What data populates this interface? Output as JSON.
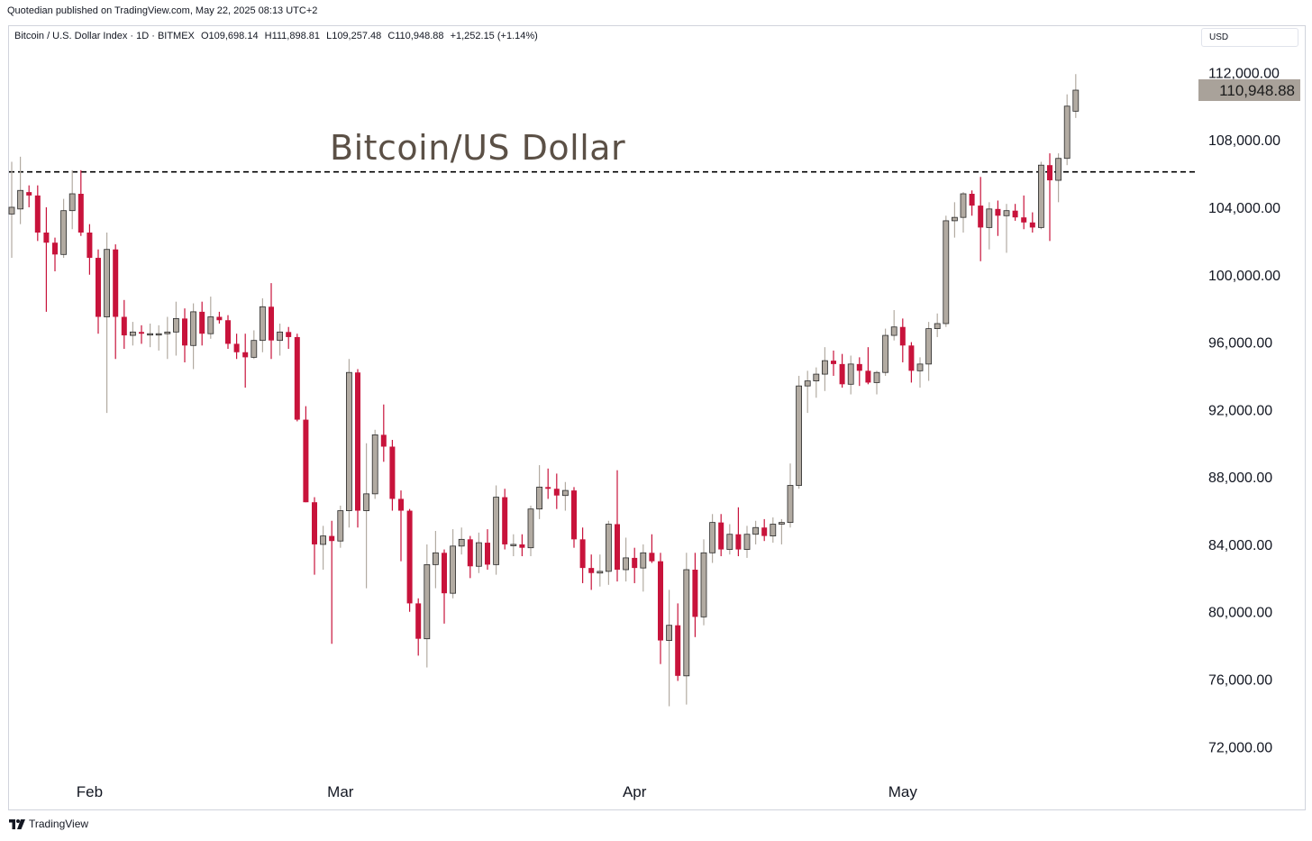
{
  "publisher_line": "Quotedian published on TradingView.com, May 22, 2025 08:13 UTC+2",
  "header": {
    "symbol": "Bitcoin / U.S. Dollar Index · 1D · BITMEX",
    "open": "O109,698.14",
    "high": "H111,898.81",
    "low": "L109,257.48",
    "close": "C110,948.88",
    "change": "+1,252.15 (+1.14%)"
  },
  "currency_button": "USD",
  "annotation_text": "Bitcoin/US Dollar",
  "footer_brand": "TradingView",
  "colors": {
    "up": "#b2aba2",
    "down": "#c8133b",
    "last_price_bg": "#a9a29a",
    "dashed_line": "#000000"
  },
  "chart_data": {
    "type": "candlestick",
    "title": "Bitcoin/US Dollar",
    "x_axis": {
      "tick_labels": [
        "Feb",
        "Mar",
        "Apr",
        "May"
      ]
    },
    "y_axis": {
      "tick_labels": [
        "112,000.00",
        "108,000.00",
        "104,000.00",
        "100,000.00",
        "96,000.00",
        "92,000.00",
        "88,000.00",
        "84,000.00",
        "80,000.00",
        "76,000.00",
        "72,000.00"
      ],
      "range": [
        70200,
        114800
      ]
    },
    "last_price_label": "110,948.88",
    "horizontal_line": {
      "value": 106100,
      "style": "dashed"
    },
    "candles": [
      {
        "o": 103600,
        "h": 106700,
        "l": 101000,
        "c": 104000
      },
      {
        "o": 103900,
        "h": 107000,
        "l": 103000,
        "c": 105000
      },
      {
        "o": 104900,
        "h": 105300,
        "l": 104000,
        "c": 104700
      },
      {
        "o": 104700,
        "h": 105300,
        "l": 102000,
        "c": 102500
      },
      {
        "o": 102500,
        "h": 104000,
        "l": 97800,
        "c": 101900
      },
      {
        "o": 101900,
        "h": 102200,
        "l": 100200,
        "c": 101200
      },
      {
        "o": 101200,
        "h": 104500,
        "l": 101000,
        "c": 103800
      },
      {
        "o": 103800,
        "h": 106200,
        "l": 102700,
        "c": 104800
      },
      {
        "o": 104800,
        "h": 106200,
        "l": 102300,
        "c": 102500
      },
      {
        "o": 102500,
        "h": 103000,
        "l": 100000,
        "c": 101000
      },
      {
        "o": 101000,
        "h": 101500,
        "l": 96500,
        "c": 97500
      },
      {
        "o": 97500,
        "h": 102500,
        "l": 91800,
        "c": 101500
      },
      {
        "o": 101500,
        "h": 101800,
        "l": 95000,
        "c": 97500
      },
      {
        "o": 97500,
        "h": 98500,
        "l": 95600,
        "c": 96400
      },
      {
        "o": 96400,
        "h": 97200,
        "l": 95800,
        "c": 96600
      },
      {
        "o": 96600,
        "h": 97000,
        "l": 95900,
        "c": 96500
      },
      {
        "o": 96500,
        "h": 97100,
        "l": 95700,
        "c": 96500
      },
      {
        "o": 96500,
        "h": 97000,
        "l": 95500,
        "c": 96500
      },
      {
        "o": 96500,
        "h": 97500,
        "l": 95000,
        "c": 96600
      },
      {
        "o": 96600,
        "h": 98400,
        "l": 95200,
        "c": 97400
      },
      {
        "o": 97400,
        "h": 98000,
        "l": 94800,
        "c": 95800
      },
      {
        "o": 95800,
        "h": 98300,
        "l": 94400,
        "c": 97800
      },
      {
        "o": 97800,
        "h": 98400,
        "l": 95800,
        "c": 96500
      },
      {
        "o": 96500,
        "h": 98700,
        "l": 96200,
        "c": 97500
      },
      {
        "o": 97500,
        "h": 97800,
        "l": 97100,
        "c": 97300
      },
      {
        "o": 97300,
        "h": 97600,
        "l": 95600,
        "c": 95900
      },
      {
        "o": 95900,
        "h": 96500,
        "l": 95000,
        "c": 95400
      },
      {
        "o": 95400,
        "h": 96500,
        "l": 93300,
        "c": 95100
      },
      {
        "o": 95100,
        "h": 96700,
        "l": 95000,
        "c": 96100
      },
      {
        "o": 96100,
        "h": 98600,
        "l": 95400,
        "c": 98100
      },
      {
        "o": 98100,
        "h": 99500,
        "l": 95000,
        "c": 96100
      },
      {
        "o": 96100,
        "h": 97100,
        "l": 95200,
        "c": 96600
      },
      {
        "o": 96600,
        "h": 96900,
        "l": 95600,
        "c": 96300
      },
      {
        "o": 96300,
        "h": 96500,
        "l": 91300,
        "c": 91400
      },
      {
        "o": 91400,
        "h": 92200,
        "l": 86500,
        "c": 86500
      },
      {
        "o": 86500,
        "h": 86800,
        "l": 82200,
        "c": 84000
      },
      {
        "o": 84000,
        "h": 85100,
        "l": 82500,
        "c": 84500
      },
      {
        "o": 84500,
        "h": 85400,
        "l": 78100,
        "c": 84200
      },
      {
        "o": 84200,
        "h": 86300,
        "l": 83800,
        "c": 86000
      },
      {
        "o": 86000,
        "h": 95000,
        "l": 85000,
        "c": 94200
      },
      {
        "o": 94200,
        "h": 94400,
        "l": 85000,
        "c": 86000
      },
      {
        "o": 86000,
        "h": 90000,
        "l": 81400,
        "c": 87000
      },
      {
        "o": 87000,
        "h": 90800,
        "l": 86700,
        "c": 90500
      },
      {
        "o": 90500,
        "h": 92300,
        "l": 88900,
        "c": 89800
      },
      {
        "o": 89800,
        "h": 90200,
        "l": 86000,
        "c": 86700
      },
      {
        "o": 86700,
        "h": 87200,
        "l": 83000,
        "c": 86000
      },
      {
        "o": 86000,
        "h": 86100,
        "l": 80000,
        "c": 80500
      },
      {
        "o": 80500,
        "h": 80800,
        "l": 77400,
        "c": 78400
      },
      {
        "o": 78400,
        "h": 84000,
        "l": 76700,
        "c": 82800
      },
      {
        "o": 82800,
        "h": 84800,
        "l": 81400,
        "c": 83500
      },
      {
        "o": 83500,
        "h": 83700,
        "l": 79300,
        "c": 81100
      },
      {
        "o": 81100,
        "h": 84900,
        "l": 80800,
        "c": 83900
      },
      {
        "o": 83900,
        "h": 85000,
        "l": 83400,
        "c": 84300
      },
      {
        "o": 84300,
        "h": 84500,
        "l": 82000,
        "c": 82700
      },
      {
        "o": 82700,
        "h": 84700,
        "l": 82300,
        "c": 84100
      },
      {
        "o": 84100,
        "h": 84900,
        "l": 82500,
        "c": 82800
      },
      {
        "o": 82800,
        "h": 87500,
        "l": 82200,
        "c": 86800
      },
      {
        "o": 86800,
        "h": 87300,
        "l": 83700,
        "c": 84000
      },
      {
        "o": 84000,
        "h": 84600,
        "l": 83300,
        "c": 84000
      },
      {
        "o": 84000,
        "h": 84600,
        "l": 83300,
        "c": 83800
      },
      {
        "o": 83800,
        "h": 86300,
        "l": 83300,
        "c": 86100
      },
      {
        "o": 86100,
        "h": 88700,
        "l": 85500,
        "c": 87400
      },
      {
        "o": 87400,
        "h": 88500,
        "l": 86700,
        "c": 87300
      },
      {
        "o": 87300,
        "h": 88200,
        "l": 86100,
        "c": 86900
      },
      {
        "o": 86900,
        "h": 87700,
        "l": 86000,
        "c": 87200
      },
      {
        "o": 87200,
        "h": 87400,
        "l": 83800,
        "c": 84300
      },
      {
        "o": 84300,
        "h": 85000,
        "l": 81700,
        "c": 82600
      },
      {
        "o": 82600,
        "h": 83400,
        "l": 81300,
        "c": 82300
      },
      {
        "o": 82300,
        "h": 83400,
        "l": 81500,
        "c": 82400
      },
      {
        "o": 82400,
        "h": 85400,
        "l": 81600,
        "c": 85200
      },
      {
        "o": 85200,
        "h": 88400,
        "l": 81800,
        "c": 82500
      },
      {
        "o": 82500,
        "h": 84400,
        "l": 81800,
        "c": 83200
      },
      {
        "o": 83200,
        "h": 83800,
        "l": 81700,
        "c": 82600
      },
      {
        "o": 82600,
        "h": 84000,
        "l": 81200,
        "c": 83500
      },
      {
        "o": 83500,
        "h": 84600,
        "l": 82900,
        "c": 83000
      },
      {
        "o": 83000,
        "h": 83500,
        "l": 76900,
        "c": 78300
      },
      {
        "o": 78300,
        "h": 81300,
        "l": 74400,
        "c": 79200
      },
      {
        "o": 79200,
        "h": 80500,
        "l": 75900,
        "c": 76200
      },
      {
        "o": 76200,
        "h": 83500,
        "l": 74500,
        "c": 82500
      },
      {
        "o": 82500,
        "h": 83500,
        "l": 78500,
        "c": 79700
      },
      {
        "o": 79700,
        "h": 84300,
        "l": 79200,
        "c": 83500
      },
      {
        "o": 83500,
        "h": 85800,
        "l": 82900,
        "c": 85300
      },
      {
        "o": 85300,
        "h": 85800,
        "l": 83300,
        "c": 83700
      },
      {
        "o": 83700,
        "h": 85200,
        "l": 83400,
        "c": 84600
      },
      {
        "o": 84600,
        "h": 86200,
        "l": 83300,
        "c": 83700
      },
      {
        "o": 83700,
        "h": 85100,
        "l": 83200,
        "c": 84600
      },
      {
        "o": 84600,
        "h": 85400,
        "l": 84000,
        "c": 85000
      },
      {
        "o": 85000,
        "h": 85500,
        "l": 84200,
        "c": 84500
      },
      {
        "o": 84500,
        "h": 85600,
        "l": 84100,
        "c": 85200
      },
      {
        "o": 85200,
        "h": 85500,
        "l": 84000,
        "c": 85300
      },
      {
        "o": 85300,
        "h": 88800,
        "l": 85000,
        "c": 87500
      },
      {
        "o": 87500,
        "h": 94000,
        "l": 87300,
        "c": 93400
      },
      {
        "o": 93400,
        "h": 94300,
        "l": 91800,
        "c": 93700
      },
      {
        "o": 93700,
        "h": 94500,
        "l": 92700,
        "c": 94100
      },
      {
        "o": 94100,
        "h": 95700,
        "l": 93100,
        "c": 94900
      },
      {
        "o": 94900,
        "h": 95500,
        "l": 94000,
        "c": 94700
      },
      {
        "o": 94700,
        "h": 95300,
        "l": 93300,
        "c": 93500
      },
      {
        "o": 93500,
        "h": 95200,
        "l": 92900,
        "c": 94700
      },
      {
        "o": 94700,
        "h": 95100,
        "l": 93400,
        "c": 94300
      },
      {
        "o": 94300,
        "h": 95700,
        "l": 93500,
        "c": 93600
      },
      {
        "o": 93600,
        "h": 94300,
        "l": 92900,
        "c": 94200
      },
      {
        "o": 94200,
        "h": 96800,
        "l": 94000,
        "c": 96400
      },
      {
        "o": 96400,
        "h": 97900,
        "l": 96100,
        "c": 96900
      },
      {
        "o": 96900,
        "h": 97400,
        "l": 94800,
        "c": 95800
      },
      {
        "o": 95800,
        "h": 96000,
        "l": 93600,
        "c": 94300
      },
      {
        "o": 94300,
        "h": 95100,
        "l": 93300,
        "c": 94700
      },
      {
        "o": 94700,
        "h": 97200,
        "l": 93700,
        "c": 96800
      },
      {
        "o": 96800,
        "h": 97700,
        "l": 96300,
        "c": 97100
      },
      {
        "o": 97100,
        "h": 103500,
        "l": 96900,
        "c": 103200
      },
      {
        "o": 103200,
        "h": 104300,
        "l": 102200,
        "c": 103400
      },
      {
        "o": 103400,
        "h": 104900,
        "l": 102500,
        "c": 104800
      },
      {
        "o": 104800,
        "h": 105000,
        "l": 103500,
        "c": 104100
      },
      {
        "o": 104100,
        "h": 105800,
        "l": 100800,
        "c": 102800
      },
      {
        "o": 102800,
        "h": 104300,
        "l": 101500,
        "c": 103900
      },
      {
        "o": 103900,
        "h": 104400,
        "l": 102300,
        "c": 103500
      },
      {
        "o": 103500,
        "h": 104200,
        "l": 101300,
        "c": 103800
      },
      {
        "o": 103800,
        "h": 104200,
        "l": 103200,
        "c": 103400
      },
      {
        "o": 103400,
        "h": 104700,
        "l": 102700,
        "c": 103100
      },
      {
        "o": 103100,
        "h": 103700,
        "l": 102500,
        "c": 102800
      },
      {
        "o": 102800,
        "h": 106700,
        "l": 102700,
        "c": 106500
      },
      {
        "o": 106500,
        "h": 107200,
        "l": 102000,
        "c": 105600
      },
      {
        "o": 105600,
        "h": 107200,
        "l": 104300,
        "c": 106900
      },
      {
        "o": 106900,
        "h": 110700,
        "l": 106500,
        "c": 110000
      },
      {
        "o": 109700,
        "h": 111900,
        "l": 109300,
        "c": 110949
      }
    ]
  }
}
